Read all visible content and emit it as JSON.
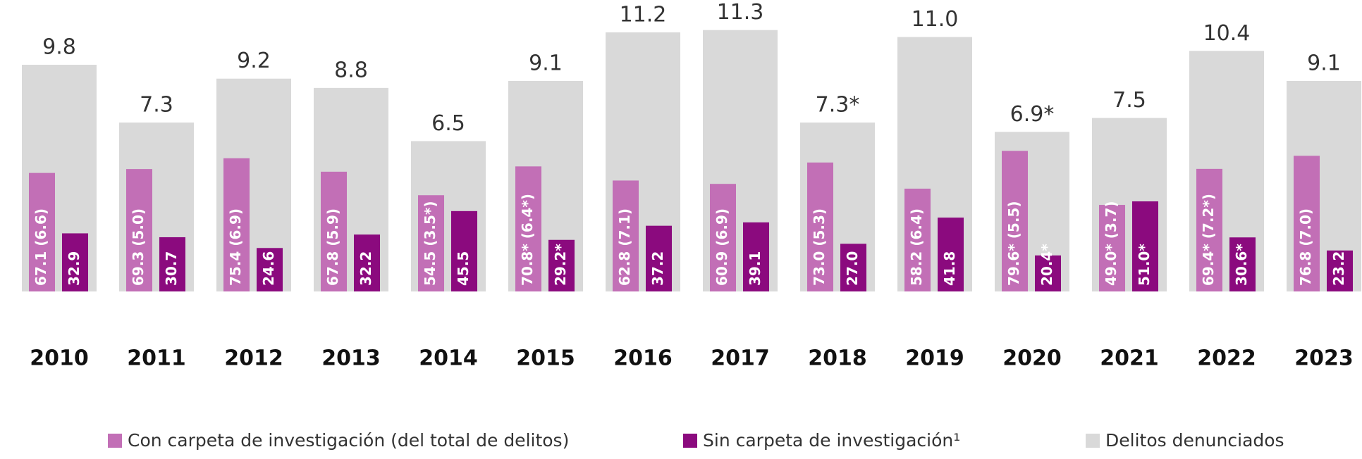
{
  "chart_data": {
    "type": "bar",
    "categories": [
      "2010",
      "2011",
      "2012",
      "2013",
      "2014",
      "2015",
      "2016",
      "2017",
      "2018",
      "2019",
      "2020",
      "2021",
      "2022",
      "2023"
    ],
    "ylim": [
      0,
      12.6
    ],
    "y2lim": [
      0,
      165
    ],
    "legend": "bottom",
    "series": [
      {
        "name": "Delitos denunciados",
        "color": "#d9d9d9",
        "values": [
          9.8,
          7.3,
          9.2,
          8.8,
          6.5,
          9.1,
          11.2,
          11.3,
          7.3,
          11.0,
          6.9,
          7.5,
          10.4,
          9.1
        ],
        "value_labels": [
          "9.8",
          "7.3",
          "9.2",
          "8.8",
          "6.5",
          "9.1",
          "11.2",
          "11.3",
          "7.3*",
          "11.0",
          "6.9*",
          "7.5",
          "10.4",
          "9.1"
        ]
      },
      {
        "name": "Con carpeta de investigación (del total de delitos)",
        "color": "#c26fb6",
        "axis": "y2",
        "values": [
          67.1,
          69.3,
          75.4,
          67.8,
          54.5,
          70.8,
          62.8,
          60.9,
          73.0,
          58.2,
          79.6,
          49.0,
          69.4,
          76.8
        ],
        "value_labels": [
          "67.1 (6.6)",
          "69.3 (5.0)",
          "75.4 (6.9)",
          "67.8 (5.9)",
          "54.5 (3.5*)",
          "70.8* (6.4*)",
          "62.8 (7.1)",
          "60.9 (6.9)",
          "73.0 (5.3)",
          "58.2 (6.4)",
          "79.6* (5.5)",
          "49.0* (3.7)",
          "69.4* (7.2*)",
          "76.8 (7.0)"
        ]
      },
      {
        "name": "Sin carpeta de investigación¹",
        "color": "#8b0a7e",
        "axis": "y2",
        "values": [
          32.9,
          30.7,
          24.6,
          32.2,
          45.5,
          29.2,
          37.2,
          39.1,
          27.0,
          41.8,
          20.4,
          51.0,
          30.6,
          23.2
        ],
        "value_labels": [
          "32.9",
          "30.7",
          "24.6",
          "32.2",
          "45.5",
          "29.2*",
          "37.2",
          "39.1",
          "27.0",
          "41.8",
          "20.4*",
          "51.0*",
          "30.6*",
          "23.2"
        ]
      }
    ]
  }
}
